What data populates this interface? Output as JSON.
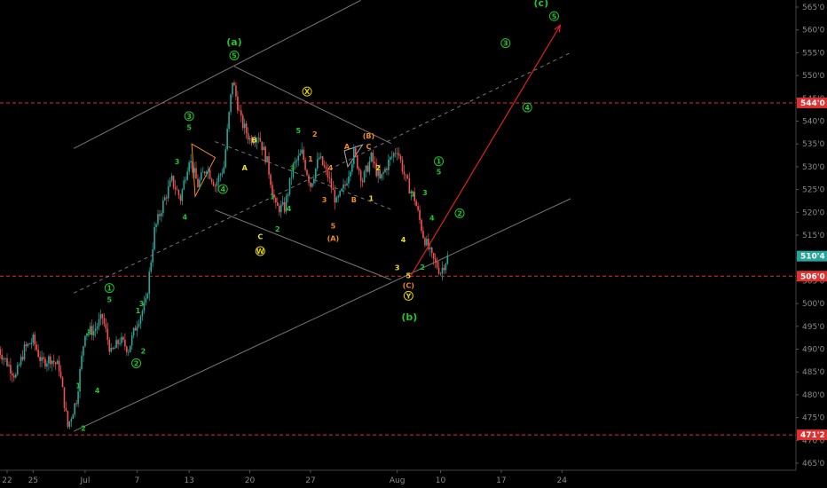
{
  "chart_data": {
    "type": "candlestick",
    "y_axis": {
      "ylim": [
        463.0,
        567.0
      ],
      "ticks": [
        "465'0",
        "470'0",
        "475'0",
        "480'0",
        "485'0",
        "490'0",
        "495'0",
        "500'0",
        "505'0",
        "510'0",
        "515'0",
        "520'0",
        "525'0",
        "530'0",
        "535'0",
        "540'0",
        "545'0",
        "550'0",
        "555'0",
        "560'0",
        "565'0"
      ],
      "tick_values": [
        465,
        470,
        475,
        480,
        485,
        490,
        495,
        500,
        505,
        510,
        515,
        520,
        525,
        530,
        535,
        540,
        545,
        550,
        555,
        560,
        565
      ]
    },
    "x_axis": {
      "ticks": [
        {
          "label": "22",
          "day": 0
        },
        {
          "label": "25",
          "day": 3
        },
        {
          "label": "Jul",
          "day": 9
        },
        {
          "label": "7",
          "day": 15
        },
        {
          "label": "13",
          "day": 21
        },
        {
          "label": "20",
          "day": 28
        },
        {
          "label": "27",
          "day": 35
        },
        {
          "label": "Aug",
          "day": 45
        },
        {
          "label": "10",
          "day": 50
        },
        {
          "label": "17",
          "day": 57
        },
        {
          "label": "24",
          "day": 64
        }
      ]
    },
    "price_levels": [
      {
        "value": 544.0,
        "label": "544'0",
        "color": "#e03030"
      },
      {
        "value": 506.0,
        "label": "506'0",
        "color": "#e03030"
      },
      {
        "value": 471.2,
        "label": "471'2",
        "color": "#e03030"
      }
    ],
    "last_price": {
      "value": 510.4,
      "label": "510'4",
      "color": "#26a69a"
    },
    "price_path": [
      [
        -1,
        490
      ],
      [
        0,
        487
      ],
      [
        1,
        484
      ],
      [
        2,
        490
      ],
      [
        3,
        492
      ],
      [
        4,
        487
      ],
      [
        5,
        488
      ],
      [
        6,
        486
      ],
      [
        7,
        473
      ],
      [
        8,
        479
      ],
      [
        9,
        494
      ],
      [
        10,
        494
      ],
      [
        11,
        497
      ],
      [
        12,
        489
      ],
      [
        13,
        492
      ],
      [
        14,
        490
      ],
      [
        15,
        496
      ],
      [
        16,
        500
      ],
      [
        17,
        516
      ],
      [
        18,
        522
      ],
      [
        19,
        527
      ],
      [
        20,
        523
      ],
      [
        21,
        532
      ],
      [
        22,
        526
      ],
      [
        23,
        530
      ],
      [
        24,
        526
      ],
      [
        25,
        530
      ],
      [
        26,
        549
      ],
      [
        27,
        540
      ],
      [
        28,
        536
      ],
      [
        29,
        537
      ],
      [
        30,
        531
      ],
      [
        31,
        521
      ],
      [
        32,
        521
      ],
      [
        33,
        530
      ],
      [
        34,
        533
      ],
      [
        35,
        526
      ],
      [
        36,
        532
      ],
      [
        37,
        528
      ],
      [
        38,
        522
      ],
      [
        39,
        526
      ],
      [
        40,
        533
      ],
      [
        41,
        527
      ],
      [
        42,
        532
      ],
      [
        43,
        527
      ],
      [
        44,
        531
      ],
      [
        45,
        534
      ],
      [
        46,
        527
      ],
      [
        47,
        523
      ],
      [
        48,
        515
      ],
      [
        49,
        510
      ],
      [
        50,
        507
      ],
      [
        51,
        511
      ]
    ],
    "annotations": [
      {
        "text": "(a)",
        "day": 26.2,
        "price": 557.4,
        "color": "#22c32e",
        "size": "big",
        "circled": false
      },
      {
        "text": "5",
        "day": 26.2,
        "price": 554.4,
        "color": "#22c32e",
        "size": "small",
        "circled": true
      },
      {
        "text": "(b)",
        "day": 46.4,
        "price": 497.1,
        "color": "#22c32e",
        "size": "big",
        "circled": false
      },
      {
        "text": "(c)",
        "day": 61.6,
        "price": 566.0,
        "color": "#22c32e",
        "size": "big",
        "circled": false
      },
      {
        "text": "5",
        "day": 63.1,
        "price": 563.0,
        "color": "#22c32e",
        "size": "small",
        "circled": true
      },
      {
        "text": "3",
        "day": 57.5,
        "price": 557.1,
        "color": "#22c32e",
        "size": "small",
        "circled": true
      },
      {
        "text": "4",
        "day": 60.0,
        "price": 543.0,
        "color": "#22c32e",
        "size": "small",
        "circled": true
      },
      {
        "text": "1",
        "day": 49.8,
        "price": 531.2,
        "color": "#22c32e",
        "size": "small",
        "circled": true
      },
      {
        "text": "5",
        "day": 49.8,
        "price": 528.9,
        "color": "#22c32e",
        "size": "small",
        "circled": false
      },
      {
        "text": "3",
        "day": 48.2,
        "price": 524.3,
        "color": "#22c32e",
        "size": "small",
        "circled": false
      },
      {
        "text": "4",
        "day": 49.0,
        "price": 518.8,
        "color": "#22c32e",
        "size": "small",
        "circled": false
      },
      {
        "text": "2",
        "day": 52.2,
        "price": 519.8,
        "color": "#22c32e",
        "size": "small",
        "circled": true
      },
      {
        "text": "1",
        "day": 46.8,
        "price": 524.0,
        "color": "#22c32e",
        "size": "small",
        "circled": false
      },
      {
        "text": "2",
        "day": 47.9,
        "price": 508.0,
        "color": "#22c32e",
        "size": "small",
        "circled": false
      },
      {
        "text": "X",
        "day": 34.6,
        "price": 546.5,
        "color": "#e0d000",
        "size": "small",
        "circled": true
      },
      {
        "text": "W",
        "day": 29.2,
        "price": 511.5,
        "color": "#e0d000",
        "size": "small",
        "circled": true
      },
      {
        "text": "Y",
        "day": 46.3,
        "price": 501.7,
        "color": "#e0d000",
        "size": "small",
        "circled": true
      },
      {
        "text": "(B)",
        "day": 41.7,
        "price": 536.8,
        "color": "#f08a1c",
        "size": "small",
        "circled": false
      },
      {
        "text": "C",
        "day": 41.7,
        "price": 534.5,
        "color": "#f08a1c",
        "size": "small",
        "circled": false
      },
      {
        "text": "A",
        "day": 39.2,
        "price": 534.5,
        "color": "#f08a1c",
        "size": "small",
        "circled": false
      },
      {
        "text": "(A)",
        "day": 37.6,
        "price": 514.3,
        "color": "#f08a1c",
        "size": "small",
        "circled": false
      },
      {
        "text": "5",
        "day": 37.6,
        "price": 517.0,
        "color": "#f08a1c",
        "size": "small",
        "circled": false
      },
      {
        "text": "B",
        "day": 40.0,
        "price": 522.8,
        "color": "#f08a1c",
        "size": "small",
        "circled": false
      },
      {
        "text": "3",
        "day": 36.6,
        "price": 522.8,
        "color": "#f08a1c",
        "size": "small",
        "circled": false
      },
      {
        "text": "4",
        "day": 37.3,
        "price": 529.8,
        "color": "#f08a1c",
        "size": "small",
        "circled": false
      },
      {
        "text": "2",
        "day": 35.5,
        "price": 537.2,
        "color": "#f08a1c",
        "size": "small",
        "circled": false
      },
      {
        "text": "1",
        "day": 35.0,
        "price": 531.7,
        "color": "#f08a1c",
        "size": "small",
        "circled": false
      },
      {
        "text": "(C)",
        "day": 46.3,
        "price": 504.0,
        "color": "#f08a1c",
        "size": "small",
        "circled": false
      },
      {
        "text": "5",
        "day": 46.3,
        "price": 506.1,
        "color": "#f0e020",
        "size": "small",
        "circled": false
      },
      {
        "text": "3",
        "day": 45.0,
        "price": 507.9,
        "color": "#f0e020",
        "size": "small",
        "circled": false
      },
      {
        "text": "4",
        "day": 45.7,
        "price": 514.0,
        "color": "#f0e020",
        "size": "small",
        "circled": false
      },
      {
        "text": "2",
        "day": 42.8,
        "price": 529.8,
        "color": "#f0e020",
        "size": "small",
        "circled": false
      },
      {
        "text": "1",
        "day": 42.0,
        "price": 523.1,
        "color": "#f0e020",
        "size": "small",
        "circled": false
      },
      {
        "text": "A",
        "day": 27.4,
        "price": 529.8,
        "color": "#f0e020",
        "size": "small",
        "circled": false
      },
      {
        "text": "B",
        "day": 28.5,
        "price": 535.9,
        "color": "#f0e020",
        "size": "small",
        "circled": false
      },
      {
        "text": "C",
        "day": 29.2,
        "price": 514.7,
        "color": "#f0e020",
        "size": "small",
        "circled": false
      },
      {
        "text": "4",
        "day": 24.9,
        "price": 525.1,
        "color": "#22c32e",
        "size": "small",
        "circled": true
      },
      {
        "text": "3",
        "day": 21.0,
        "price": 541.1,
        "color": "#22c32e",
        "size": "small",
        "circled": true
      },
      {
        "text": "5",
        "day": 21.0,
        "price": 538.6,
        "color": "#22c32e",
        "size": "small",
        "circled": false
      },
      {
        "text": "1",
        "day": 11.8,
        "price": 503.4,
        "color": "#22c32e",
        "size": "small",
        "circled": true
      },
      {
        "text": "5",
        "day": 11.8,
        "price": 500.9,
        "color": "#22c32e",
        "size": "small",
        "circled": false
      },
      {
        "text": "2",
        "day": 14.9,
        "price": 486.9,
        "color": "#22c32e",
        "size": "small",
        "circled": true
      },
      {
        "text": "2",
        "day": 15.7,
        "price": 489.6,
        "color": "#22c32e",
        "size": "small",
        "circled": false
      },
      {
        "text": "3",
        "day": 19.6,
        "price": 531.1,
        "color": "#22c32e",
        "size": "small",
        "circled": false
      },
      {
        "text": "4",
        "day": 20.5,
        "price": 519.0,
        "color": "#22c32e",
        "size": "small",
        "circled": false
      },
      {
        "text": "1",
        "day": 8.2,
        "price": 482.0,
        "color": "#22c32e",
        "size": "small",
        "circled": false
      },
      {
        "text": "3",
        "day": 9.5,
        "price": 493.7,
        "color": "#22c32e",
        "size": "small",
        "circled": false
      },
      {
        "text": "4",
        "day": 10.4,
        "price": 481.0,
        "color": "#22c32e",
        "size": "small",
        "circled": false
      },
      {
        "text": "2",
        "day": 8.8,
        "price": 472.7,
        "color": "#22c32e",
        "size": "small",
        "circled": false
      },
      {
        "text": "5",
        "day": 33.6,
        "price": 538.0,
        "color": "#22c32e",
        "size": "small",
        "circled": false
      },
      {
        "text": "3",
        "day": 32.9,
        "price": 529.7,
        "color": "#22c32e",
        "size": "small",
        "circled": false
      },
      {
        "text": "4",
        "day": 32.5,
        "price": 520.8,
        "color": "#22c32e",
        "size": "small",
        "circled": false
      },
      {
        "text": "1",
        "day": 30.6,
        "price": 523.5,
        "color": "#22c32e",
        "size": "small",
        "circled": false
      },
      {
        "text": "2",
        "day": 31.2,
        "price": 516.4,
        "color": "#22c32e",
        "size": "small",
        "circled": false
      },
      {
        "text": "3",
        "day": 15.5,
        "price": 500.0,
        "color": "#22c32e",
        "size": "small",
        "circled": false
      },
      {
        "text": "1",
        "day": 15.1,
        "price": 498.5,
        "color": "#22c32e",
        "size": "small",
        "circled": false
      }
    ],
    "channels": [
      {
        "from": [
          7.7,
          534.0
        ],
        "to": [
          40.8,
          566.5
        ],
        "color": "#777777",
        "dash": false
      },
      {
        "from": [
          7.7,
          472.0
        ],
        "to": [
          65.0,
          523.0
        ],
        "color": "#777777",
        "dash": false
      },
      {
        "from": [
          7.7,
          502.3
        ],
        "to": [
          65.0,
          555.0
        ],
        "color": "#777777",
        "dash": true
      },
      {
        "from": [
          26.2,
          552.0
        ],
        "to": [
          44.3,
          535.1
        ],
        "color": "#777777",
        "dash": false
      },
      {
        "from": [
          24.0,
          520.5
        ],
        "to": [
          44.3,
          505.2
        ],
        "color": "#777777",
        "dash": false
      },
      {
        "from": [
          24.0,
          535.5
        ],
        "to": [
          44.5,
          520.5
        ],
        "color": "#777777",
        "dash": true
      }
    ],
    "triangles": [
      {
        "points": [
          [
            21.3,
            535.0
          ],
          [
            24.0,
            532.0
          ],
          [
            21.7,
            523.5
          ]
        ],
        "color": "#f08a1c"
      },
      {
        "points": [
          [
            38.9,
            533.5
          ],
          [
            41.0,
            534.8
          ],
          [
            39.3,
            530.0
          ]
        ],
        "color": "#aaaaaa"
      }
    ],
    "forecast_arrow": {
      "from": [
        46.6,
        506.2
      ],
      "to": [
        63.8,
        561.0
      ],
      "color": "#e02020"
    }
  }
}
